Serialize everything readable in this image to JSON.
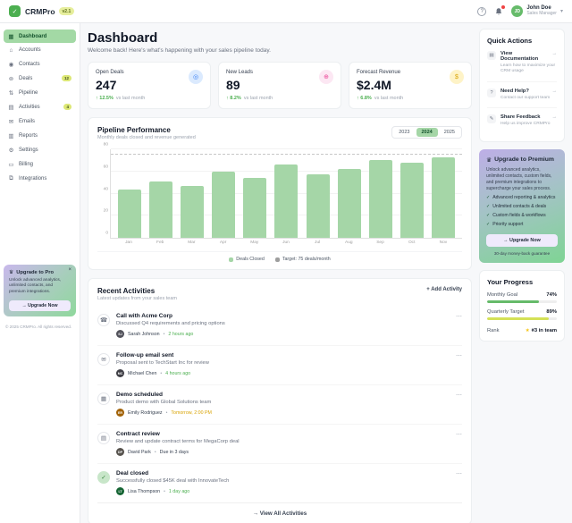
{
  "header": {
    "app_name": "CRMPro",
    "version_badge": "v2.1",
    "logo_glyph": "✓",
    "help_icon": "?",
    "user": {
      "name": "John Doe",
      "role": "Sales Manager",
      "initials": "JD",
      "chevron": "▾"
    }
  },
  "sidebar": {
    "items": [
      {
        "label": "Dashboard",
        "icon": "▦",
        "active": true
      },
      {
        "label": "Accounts",
        "icon": "⌂"
      },
      {
        "label": "Contacts",
        "icon": "◉"
      },
      {
        "label": "Deals",
        "icon": "⊚",
        "badge": "12"
      },
      {
        "label": "Pipeline",
        "icon": "⇅"
      },
      {
        "label": "Activities",
        "icon": "▤",
        "badge": "4"
      },
      {
        "label": "Emails",
        "icon": "✉"
      },
      {
        "label": "Reports",
        "icon": "▥"
      },
      {
        "label": "Settings",
        "icon": "⚙"
      },
      {
        "label": "Billing",
        "icon": "▭"
      },
      {
        "label": "Integrations",
        "icon": "⧉"
      }
    ],
    "upgrade_card": {
      "icon": "♛",
      "title": "Upgrade to Pro",
      "close": "×",
      "description": "Unlock advanced analytics, unlimited contacts, and premium integrations.",
      "button": "→ Upgrade Now"
    },
    "copyright": "© 2025 CRMPro. All rights reserved."
  },
  "main": {
    "title": "Dashboard",
    "subtitle": "Welcome back! Here's what's happening with your sales pipeline today.",
    "stats": [
      {
        "label": "Open Deals",
        "value": "247",
        "change": "↑ 12.5%",
        "note": "vs last month",
        "icon": "◎",
        "icon_bg": "#dbeafe",
        "icon_color": "#3b82f6",
        "change_color": "#4caf50"
      },
      {
        "label": "New Leads",
        "value": "89",
        "change": "↑ 8.2%",
        "note": "vs last month",
        "icon": "⊕",
        "icon_bg": "#fce7f3",
        "icon_color": "#ec4899",
        "change_color": "#4caf50"
      },
      {
        "label": "Forecast Revenue",
        "value": "$2.4M",
        "change": "↑ 6.8%",
        "note": "vs last month",
        "icon": "$",
        "icon_bg": "#fef3c7",
        "icon_color": "#d9a406",
        "change_color": "#4caf50"
      }
    ],
    "chart_card": {
      "title": "Pipeline Performance",
      "subtitle": "Monthly deals closed and revenue generated",
      "years": [
        "2023",
        "2024",
        "2025"
      ],
      "active_year": "2024"
    },
    "activities_card": {
      "title": "Recent Activities",
      "subtitle": "Latest updates from your sales team",
      "add_button": "+ Add Activity",
      "menu_glyph": "⋯",
      "items": [
        {
          "icon": "☎",
          "title": "Call with Acme Corp",
          "description": "Discussed Q4 requirements and pricing options",
          "user": "Sarah Johnson",
          "initials": "SJ",
          "avatar_color": "#52525b",
          "time": "2 hours ago",
          "time_color": "#4caf50"
        },
        {
          "icon": "✉",
          "title": "Follow-up email sent",
          "description": "Proposal sent to TechStart Inc for review",
          "user": "Michael Chen",
          "initials": "MC",
          "avatar_color": "#3f3f46",
          "time": "4 hours ago",
          "time_color": "#4caf50"
        },
        {
          "icon": "▦",
          "title": "Demo scheduled",
          "description": "Product demo with Global Solutions team",
          "user": "Emily Rodriguez",
          "initials": "ER",
          "avatar_color": "#a16207",
          "time": "Tomorrow, 2:00 PM",
          "time_color": "#d9a406"
        },
        {
          "icon": "▤",
          "title": "Contract review",
          "description": "Review and update contract terms for MegaCorp deal",
          "user": "David Park",
          "initials": "DP",
          "avatar_color": "#57534e",
          "time": "Due in 3 days",
          "time_color": "#374151"
        },
        {
          "icon": "✓",
          "title": "Deal closed",
          "description": "Successfully closed $45K deal with InnovateTech",
          "user": "Lisa Thompson",
          "initials": "LT",
          "avatar_color": "#166534",
          "time": "1 day ago",
          "time_color": "#4caf50",
          "icon_bg": "#c8e6c9",
          "icon_color": "#2e7d32"
        }
      ],
      "footer_button": "→ View All Activities"
    }
  },
  "right": {
    "quick_actions": {
      "title": "Quick Actions",
      "arrow": "→",
      "items": [
        {
          "icon": "▤",
          "title": "View Documentation",
          "description": "Learn how to maximize your CRM usage"
        },
        {
          "icon": "?",
          "title": "Need Help?",
          "description": "Contact our support team"
        },
        {
          "icon": "✎",
          "title": "Share Feedback",
          "description": "Help us improve CRMPro"
        }
      ]
    },
    "premium_card": {
      "icon": "♛",
      "title": "Upgrade to Premium",
      "description": "Unlock advanced analytics, unlimited contacts, custom fields, and premium integrations to supercharge your sales process.",
      "check_glyph": "✓",
      "features": [
        "Advanced reporting & analytics",
        "Unlimited contacts & deals",
        "Custom fields & workflows",
        "Priority support"
      ],
      "button": "→ Upgrade Now",
      "guarantee": "30-day money-back guarantee"
    },
    "progress_card": {
      "title": "Your Progress",
      "metrics": [
        {
          "label": "Monthly Goal",
          "value": "74%",
          "pct": 74,
          "color": "#66bb6a"
        },
        {
          "label": "Quarterly Target",
          "value": "89%",
          "pct": 89,
          "color": "#d4e157"
        }
      ],
      "rank_label": "Rank",
      "rank_icon": "★",
      "rank_value": "#3 in team"
    }
  },
  "chart_data": {
    "type": "bar",
    "title": "Pipeline Performance",
    "categories": [
      "Jan",
      "Feb",
      "Mar",
      "Apr",
      "May",
      "Jun",
      "Jul",
      "Aug",
      "Sep",
      "Oct",
      "Nov"
    ],
    "values": [
      44,
      51,
      47,
      60,
      54,
      66,
      57,
      62,
      70,
      68,
      73
    ],
    "xlabel": "",
    "ylabel": "Deals closed",
    "ylim": [
      0,
      80
    ],
    "yticks": [
      0,
      20,
      40,
      60,
      80
    ],
    "target_line": 75,
    "bar_color": "#a5d6a7",
    "grid": true,
    "legend_position": "bottom",
    "legend": [
      {
        "label": "Deals Closed",
        "color": "#a5d6a7"
      },
      {
        "label": "Target: 75 deals/month",
        "color": "#9e9e9e"
      }
    ]
  }
}
